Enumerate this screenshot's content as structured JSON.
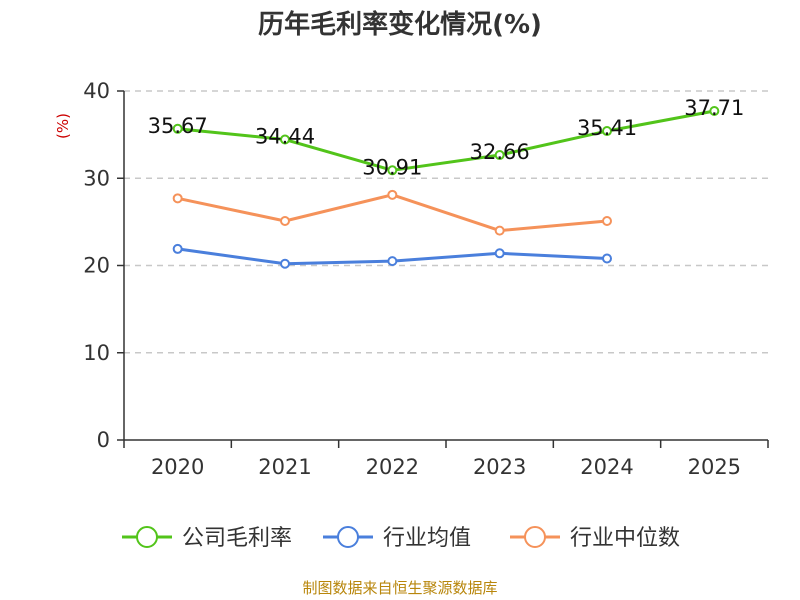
{
  "chart_data": {
    "type": "line",
    "title": "历年毛利率变化情况(%)",
    "ylabel": "(%)",
    "xlabel": "",
    "categories": [
      "2020",
      "2021",
      "2022",
      "2023",
      "2024",
      "2025"
    ],
    "ylim": [
      0,
      40
    ],
    "yticks": [
      0,
      10,
      20,
      30,
      40
    ],
    "grid": true,
    "legend_position": "bottom",
    "series": [
      {
        "name": "公司毛利率",
        "color": "#52c41a",
        "values": [
          35.67,
          34.44,
          30.91,
          32.66,
          35.41,
          37.71
        ],
        "labels": [
          "35.67",
          "34.44",
          "30.91",
          "32.66",
          "35.41",
          "37.71"
        ]
      },
      {
        "name": "行业均值",
        "color": "#4a7fdc",
        "values": [
          21.9,
          20.2,
          20.5,
          21.4,
          20.8,
          null
        ]
      },
      {
        "name": "行业中位数",
        "color": "#f5925a",
        "values": [
          27.7,
          25.1,
          28.1,
          24.0,
          25.1,
          null
        ]
      }
    ]
  },
  "source": "制图数据来自恒生聚源数据库"
}
